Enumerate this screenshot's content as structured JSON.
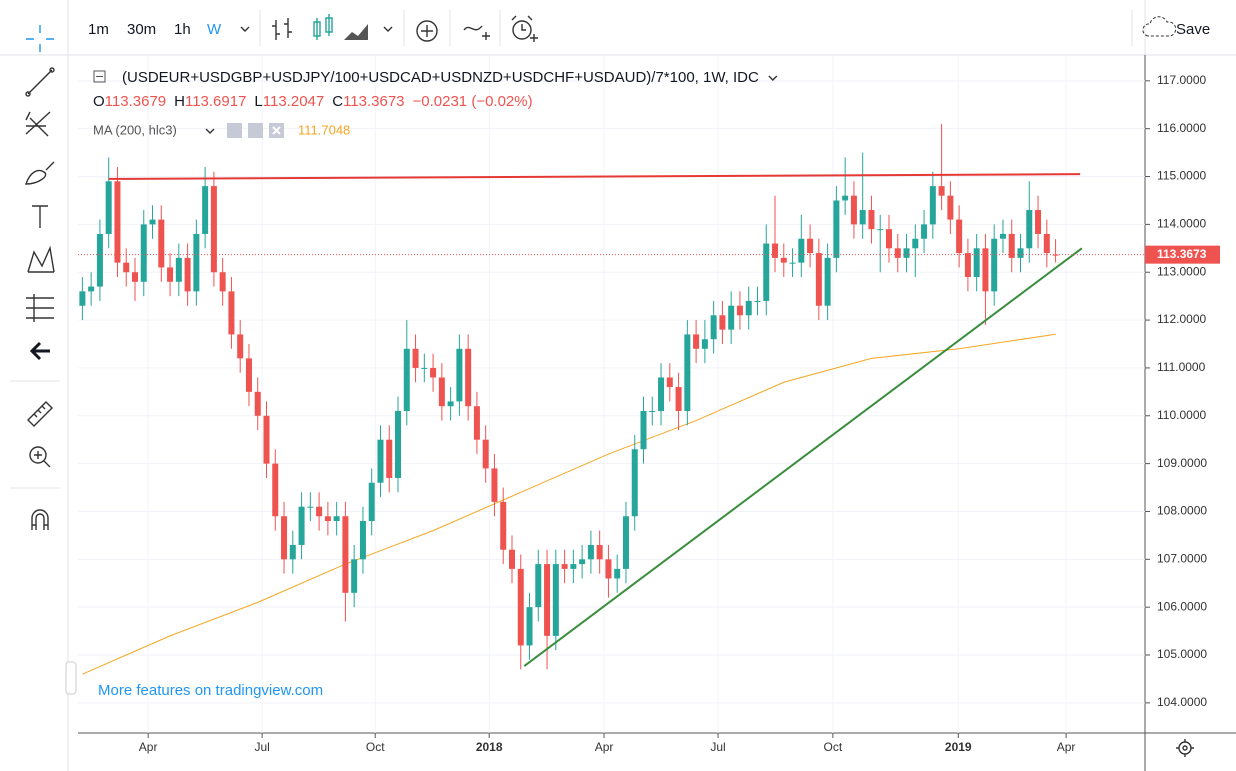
{
  "toolbar": {
    "intervals": [
      "1m",
      "30m",
      "1h",
      "W"
    ],
    "save": "Save"
  },
  "chart_data": {
    "type": "candlestick",
    "title": "(USDEUR+USDGBP+USDJPY/100+USDCAD+USDNZD+USDCHF+USDAUD)/7*100, 1W, IDC",
    "ohlc": [
      {
        "label": "O",
        "value": 113.3679
      },
      {
        "label": "H",
        "value": 113.6917
      },
      {
        "label": "L",
        "value": 113.2047
      },
      {
        "label": "C",
        "value": 113.3673
      }
    ],
    "change": "−0.0231 (−0.02%)",
    "last_price": {
      "value": 113.3673,
      "label": "113.3673"
    },
    "watermark": "More features on tradingview.com",
    "up_color": "#26a69a",
    "down_color": "#ef5350",
    "grid": true,
    "x": [
      0,
      1,
      2,
      3,
      4,
      5,
      6,
      7,
      8,
      9,
      10,
      11,
      12,
      13,
      14,
      15,
      16,
      17,
      18,
      19,
      20,
      21,
      22,
      23,
      24,
      25,
      26,
      27,
      28,
      29,
      30,
      31,
      32,
      33,
      34,
      35,
      36,
      37,
      38,
      39,
      40,
      41,
      42,
      43,
      44,
      45,
      46,
      47,
      48,
      49,
      50,
      51,
      52,
      53,
      54,
      55,
      56,
      57,
      58,
      59,
      60,
      61,
      62,
      63,
      64,
      65,
      66,
      67,
      68,
      69,
      70,
      71,
      72,
      73,
      74,
      75,
      76,
      77,
      78,
      79,
      80,
      81,
      82,
      83,
      84,
      85,
      86,
      87,
      88,
      89,
      90,
      91,
      92,
      93,
      94,
      95,
      96,
      97,
      98,
      99,
      100,
      101,
      102,
      103,
      104,
      105,
      106,
      107,
      108,
      109,
      110,
      111
    ],
    "open": [
      112.3,
      112.6,
      112.7,
      113.8,
      114.9,
      113.2,
      113.0,
      112.8,
      114.0,
      114.1,
      113.1,
      112.8,
      113.3,
      112.6,
      113.8,
      114.8,
      113.0,
      112.6,
      111.7,
      111.2,
      110.5,
      110.0,
      109.0,
      107.9,
      107.0,
      107.3,
      108.1,
      108.1,
      107.9,
      107.8,
      107.9,
      106.3,
      107.0,
      107.8,
      108.6,
      109.5,
      108.7,
      110.1,
      111.4,
      111.0,
      111.0,
      110.8,
      110.2,
      110.3,
      111.4,
      110.2,
      109.5,
      108.9,
      108.2,
      107.2,
      106.8,
      105.2,
      106.0,
      106.9,
      105.4,
      106.9,
      106.8,
      106.9,
      107.0,
      107.3,
      107.0,
      106.6,
      106.8,
      107.9,
      109.3,
      110.1,
      110.1,
      110.8,
      110.6,
      110.1,
      111.7,
      111.4,
      111.6,
      112.1,
      111.8,
      112.3,
      112.1,
      112.4,
      112.4,
      113.6,
      113.3,
      113.2,
      113.2,
      113.7,
      113.4,
      112.3,
      113.3,
      114.5,
      114.6,
      114.0,
      114.3,
      113.9,
      113.9,
      113.5,
      113.3,
      113.5,
      113.7,
      114.0,
      114.8,
      114.6,
      114.1,
      113.4,
      112.9,
      113.5,
      112.6,
      113.7,
      113.8,
      113.3,
      113.5,
      114.3,
      113.8,
      113.3679
    ],
    "high": [
      112.9,
      113.0,
      114.1,
      115.4,
      115.2,
      113.5,
      113.3,
      114.3,
      114.4,
      114.4,
      113.4,
      113.6,
      113.6,
      114.1,
      115.2,
      115.1,
      113.3,
      112.9,
      112.0,
      111.5,
      110.8,
      110.3,
      109.3,
      108.2,
      107.6,
      108.4,
      108.4,
      108.4,
      108.2,
      108.2,
      108.2,
      107.3,
      108.1,
      108.9,
      109.8,
      109.8,
      110.4,
      112.0,
      111.7,
      111.3,
      111.3,
      111.1,
      110.6,
      111.7,
      111.7,
      110.5,
      109.8,
      109.2,
      108.5,
      107.5,
      107.1,
      106.3,
      107.2,
      107.2,
      107.2,
      107.2,
      107.2,
      107.3,
      107.6,
      107.6,
      107.3,
      107.1,
      108.2,
      109.6,
      110.4,
      110.4,
      111.1,
      111.1,
      110.9,
      112.0,
      112.0,
      112.0,
      112.4,
      112.4,
      112.6,
      112.6,
      112.7,
      112.7,
      114.0,
      114.6,
      113.6,
      113.5,
      114.2,
      114.0,
      113.7,
      113.6,
      114.8,
      115.4,
      114.9,
      115.5,
      114.6,
      114.2,
      114.2,
      113.8,
      113.8,
      114.0,
      114.3,
      115.1,
      116.1,
      114.9,
      114.4,
      113.7,
      113.8,
      113.8,
      114.0,
      114.1,
      114.1,
      113.8,
      114.9,
      114.6,
      114.1,
      113.6917
    ],
    "low": [
      112.0,
      112.3,
      112.4,
      113.5,
      112.9,
      112.7,
      112.4,
      112.5,
      113.7,
      112.8,
      112.5,
      112.5,
      112.3,
      112.3,
      113.5,
      112.7,
      112.3,
      111.4,
      110.9,
      110.2,
      109.7,
      108.7,
      107.6,
      106.7,
      106.7,
      107.0,
      107.8,
      107.6,
      107.5,
      107.5,
      105.7,
      106.0,
      106.7,
      107.5,
      108.3,
      108.4,
      108.4,
      109.8,
      110.7,
      110.7,
      110.5,
      109.9,
      109.9,
      110.0,
      109.9,
      109.2,
      108.6,
      107.9,
      106.9,
      106.5,
      104.7,
      104.9,
      105.7,
      104.7,
      105.1,
      106.5,
      106.5,
      106.6,
      106.7,
      106.7,
      106.2,
      106.3,
      106.5,
      107.6,
      109.0,
      109.8,
      109.8,
      110.3,
      109.7,
      109.8,
      111.1,
      111.1,
      111.3,
      111.5,
      111.5,
      111.8,
      111.8,
      112.1,
      112.1,
      113.0,
      112.9,
      112.9,
      112.9,
      113.1,
      112.0,
      112.0,
      113.0,
      114.2,
      113.7,
      113.7,
      113.6,
      113.0,
      113.2,
      113.0,
      113.0,
      112.9,
      113.4,
      113.7,
      114.3,
      113.8,
      113.1,
      112.6,
      112.6,
      111.9,
      112.3,
      113.4,
      113.0,
      113.0,
      113.2,
      113.5,
      113.1,
      113.2047
    ],
    "close": [
      112.6,
      112.7,
      113.8,
      114.9,
      113.2,
      113.0,
      112.8,
      114.0,
      114.1,
      113.1,
      112.8,
      113.3,
      112.6,
      113.8,
      114.8,
      113.0,
      112.6,
      111.7,
      111.2,
      110.5,
      110.0,
      109.0,
      107.9,
      107.0,
      107.3,
      108.1,
      108.1,
      107.9,
      107.8,
      107.9,
      106.3,
      107.0,
      107.8,
      108.6,
      109.5,
      108.7,
      110.1,
      111.4,
      111.0,
      111.0,
      110.8,
      110.2,
      110.3,
      111.4,
      110.2,
      109.5,
      108.9,
      108.2,
      107.2,
      106.8,
      105.2,
      106.0,
      106.9,
      105.4,
      106.9,
      106.8,
      106.9,
      107.0,
      107.3,
      107.0,
      106.6,
      106.8,
      107.9,
      109.3,
      110.1,
      110.1,
      110.8,
      110.6,
      110.1,
      111.7,
      111.4,
      111.6,
      112.1,
      111.8,
      112.3,
      112.1,
      112.4,
      112.4,
      113.6,
      113.3,
      113.2,
      113.2,
      113.7,
      113.4,
      112.3,
      113.3,
      114.5,
      114.6,
      114.0,
      114.3,
      113.9,
      113.9,
      113.5,
      113.3,
      113.5,
      113.7,
      114.0,
      114.8,
      114.6,
      114.1,
      113.4,
      112.9,
      113.5,
      112.6,
      113.7,
      113.8,
      113.3,
      113.5,
      114.3,
      113.8,
      113.4,
      113.3673
    ],
    "ma": {
      "label": "MA (200, hlc3)",
      "value": 111.7048,
      "color": "#f5a623",
      "x": [
        0,
        10,
        20,
        30,
        40,
        50,
        60,
        70,
        80,
        90,
        100,
        111
      ],
      "values": [
        104.6,
        105.4,
        106.1,
        106.9,
        107.6,
        108.4,
        109.2,
        109.9,
        110.7,
        111.2,
        111.4,
        111.7048
      ]
    },
    "trendlines": [
      {
        "color": "#e53935",
        "x": [
          3,
          113.8
        ],
        "values": [
          114.95,
          115.05
        ]
      },
      {
        "color": "#388e3c",
        "x": [
          50.4,
          114
        ],
        "values": [
          104.77,
          113.5
        ]
      }
    ],
    "xlim": [
      -0.5,
      121.2
    ],
    "ylim": [
      103.37,
      117.54
    ],
    "xticks": [
      {
        "value": 7.5,
        "label": "Apr"
      },
      {
        "value": 20.5,
        "label": "Jul"
      },
      {
        "value": 33.4,
        "label": "Oct"
      },
      {
        "value": 46.4,
        "label": "2018"
      },
      {
        "value": 59.5,
        "label": "Apr"
      },
      {
        "value": 72.5,
        "label": "Jul"
      },
      {
        "value": 85.6,
        "label": "Oct"
      },
      {
        "value": 99.9,
        "label": "2019"
      },
      {
        "value": 112.2,
        "label": "Apr"
      }
    ],
    "yticks": [
      {
        "value": 104,
        "label": "104.0000"
      },
      {
        "value": 105,
        "label": "105.0000"
      },
      {
        "value": 106,
        "label": "106.0000"
      },
      {
        "value": 107,
        "label": "107.0000"
      },
      {
        "value": 108,
        "label": "108.0000"
      },
      {
        "value": 109,
        "label": "109.0000"
      },
      {
        "value": 110,
        "label": "110.0000"
      },
      {
        "value": 111,
        "label": "111.0000"
      },
      {
        "value": 112,
        "label": "112.0000"
      },
      {
        "value": 113,
        "label": "113.0000"
      },
      {
        "value": 114,
        "label": "114.0000"
      },
      {
        "value": 115,
        "label": "115.0000"
      },
      {
        "value": 116,
        "label": "116.0000"
      },
      {
        "value": 117,
        "label": "117.0000"
      }
    ]
  }
}
